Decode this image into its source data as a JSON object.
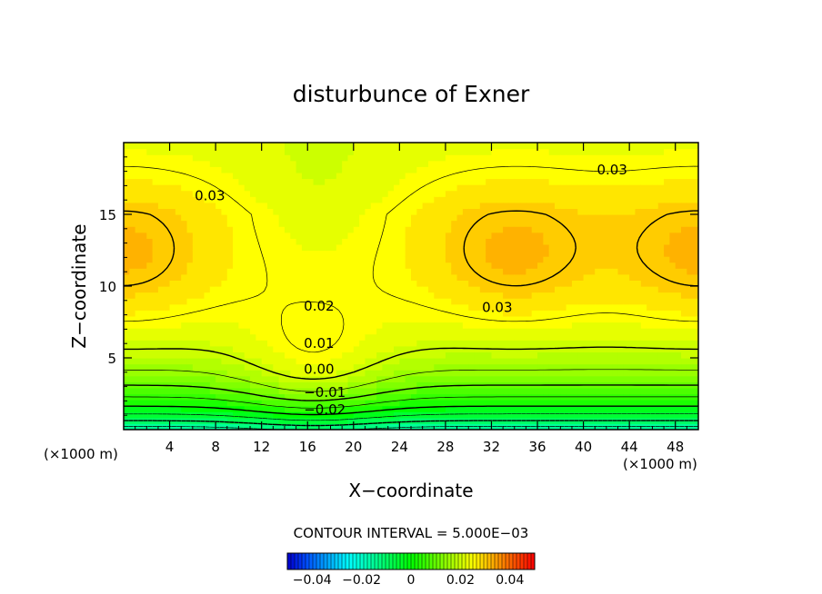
{
  "chart_data": {
    "type": "heatmap",
    "title": "disturbunce of Exner",
    "xlabel": "X−coordinate",
    "ylabel": "Z−coordinate",
    "x_unit_left": "(×1000 m)",
    "x_unit_right": "(×1000 m)",
    "xlim": [
      0,
      50
    ],
    "ylim": [
      0,
      20
    ],
    "x_ticks": [
      4,
      8,
      12,
      16,
      20,
      24,
      28,
      32,
      36,
      40,
      44,
      48
    ],
    "x_tick_labels": [
      "4",
      "8",
      "12",
      "16",
      "20",
      "24",
      "28",
      "32",
      "36",
      "40",
      "44",
      "48"
    ],
    "y_ticks": [
      5,
      10,
      15
    ],
    "y_tick_labels": [
      "5",
      "10",
      "15"
    ],
    "contour_interval_text": "CONTOUR INTERVAL = 5.000E−03",
    "contour_labels": [
      {
        "text": "0.03",
        "x": 7.5,
        "z": 16.3
      },
      {
        "text": "0.03",
        "x": 42.5,
        "z": 18.1
      },
      {
        "text": "0.03",
        "x": 32.5,
        "z": 8.5
      },
      {
        "text": "0.02",
        "x": 17,
        "z": 8.6
      },
      {
        "text": "0.01",
        "x": 17,
        "z": 6.0
      },
      {
        "text": "0.00",
        "x": 17,
        "z": 4.2
      },
      {
        "text": "−0.01",
        "x": 17.5,
        "z": 2.6
      },
      {
        "text": "−0.02",
        "x": 17.5,
        "z": 1.4
      }
    ],
    "colorbar": {
      "range": [
        -0.05,
        0.05
      ],
      "tick_values": [
        -0.04,
        -0.02,
        0,
        0.02,
        0.04
      ],
      "tick_labels": [
        "−0.04",
        "−0.02",
        "0",
        "0.02",
        "0.04"
      ]
    }
  }
}
